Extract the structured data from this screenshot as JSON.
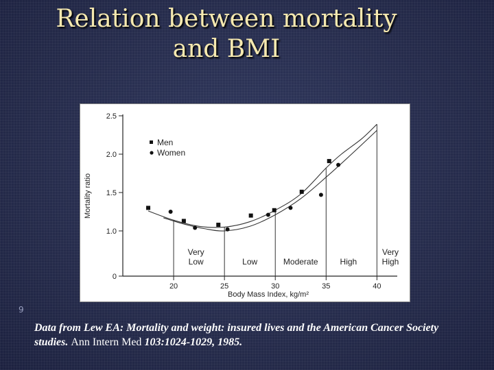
{
  "title": {
    "line1": "Relation between mortality",
    "line2": "and BMI"
  },
  "slide_number": "9",
  "citation": {
    "italic_part": "Data from Lew EA: Mortality and weight: insured lives and the American Cancer Society studies.",
    "journal": "Ann Intern Med",
    "volume_pages": "103:1024-1029, 1985."
  },
  "chart_data": {
    "type": "scatter",
    "xlabel": "Body Mass Index, kg/m²",
    "ylabel": "Mortality ratio",
    "xlim": [
      15,
      42
    ],
    "ylim": [
      0,
      2.5
    ],
    "x_ticks": [
      20,
      25,
      30,
      35,
      40
    ],
    "y_ticks": [
      {
        "value": 0,
        "label": "0"
      },
      {
        "value": 1.0,
        "label": "1.0"
      },
      {
        "value": 1.5,
        "label": "1.5"
      },
      {
        "value": 2.0,
        "label": "2.0"
      },
      {
        "value": 2.5,
        "label": "2.5"
      }
    ],
    "series": [
      {
        "name": "Men",
        "marker": "square",
        "points": [
          {
            "x": 17.5,
            "y": 1.3
          },
          {
            "x": 21.0,
            "y": 1.13
          },
          {
            "x": 24.4,
            "y": 1.08
          },
          {
            "x": 27.6,
            "y": 1.2
          },
          {
            "x": 29.9,
            "y": 1.27
          },
          {
            "x": 32.6,
            "y": 1.51
          },
          {
            "x": 35.3,
            "y": 1.91
          }
        ],
        "curve": [
          {
            "x": 17.5,
            "y": 1.26
          },
          {
            "x": 20,
            "y": 1.14
          },
          {
            "x": 22.5,
            "y": 1.06
          },
          {
            "x": 25,
            "y": 1.05
          },
          {
            "x": 27.5,
            "y": 1.12
          },
          {
            "x": 30,
            "y": 1.27
          },
          {
            "x": 32.5,
            "y": 1.48
          },
          {
            "x": 35,
            "y": 1.82
          },
          {
            "x": 36.5,
            "y": 2.0
          },
          {
            "x": 38.5,
            "y": 2.2
          },
          {
            "x": 40,
            "y": 2.39
          }
        ]
      },
      {
        "name": "Women",
        "marker": "circle",
        "points": [
          {
            "x": 19.7,
            "y": 1.25
          },
          {
            "x": 22.1,
            "y": 1.04
          },
          {
            "x": 25.3,
            "y": 1.02
          },
          {
            "x": 29.3,
            "y": 1.21
          },
          {
            "x": 31.5,
            "y": 1.3
          },
          {
            "x": 34.5,
            "y": 1.47
          },
          {
            "x": 36.2,
            "y": 1.86
          }
        ],
        "curve": [
          {
            "x": 19,
            "y": 1.17
          },
          {
            "x": 21,
            "y": 1.09
          },
          {
            "x": 23,
            "y": 1.03
          },
          {
            "x": 25,
            "y": 1.0
          },
          {
            "x": 27.5,
            "y": 1.06
          },
          {
            "x": 30,
            "y": 1.21
          },
          {
            "x": 32.5,
            "y": 1.42
          },
          {
            "x": 35,
            "y": 1.7
          },
          {
            "x": 37.5,
            "y": 2.0
          },
          {
            "x": 40,
            "y": 2.31
          }
        ]
      }
    ],
    "category_dividers": [
      20,
      25,
      30,
      35,
      40
    ],
    "categories": [
      {
        "label": [
          "Very",
          "Low"
        ],
        "x": 22.2
      },
      {
        "label": [
          "Low"
        ],
        "x": 27.5
      },
      {
        "label": [
          "Moderate"
        ],
        "x": 32.5
      },
      {
        "label": [
          "High"
        ],
        "x": 37.2
      },
      {
        "label": [
          "Very",
          "High"
        ],
        "x": 41.5
      }
    ],
    "legend": {
      "position": "top-left",
      "entries": [
        "Men",
        "Women"
      ]
    }
  }
}
